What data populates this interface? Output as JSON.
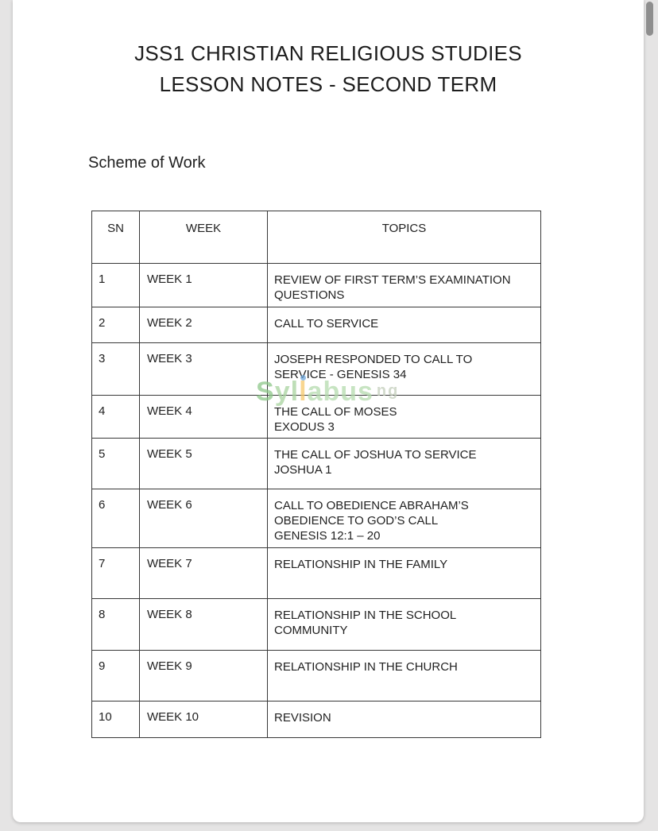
{
  "document": {
    "title_line1": "JSS1 CHRISTIAN RELIGIOUS STUDIES",
    "title_line2": "LESSON NOTES - SECOND TERM",
    "section_heading": "Scheme of Work"
  },
  "table": {
    "headers": [
      "SN",
      "WEEK",
      "TOPICS"
    ],
    "rows": [
      {
        "sn": "1",
        "week": "WEEK 1",
        "topic": [
          "REVIEW OF FIRST TERM’S EXAMINATION",
          "QUESTIONS"
        ]
      },
      {
        "sn": "2",
        "week": "WEEK 2",
        "topic": [
          "CALL TO SERVICE"
        ]
      },
      {
        "sn": "3",
        "week": "WEEK 3",
        "topic": [
          "JOSEPH RESPONDED TO CALL TO",
          "SERVICE - GENESIS 34"
        ]
      },
      {
        "sn": "4",
        "week": "WEEK 4",
        "topic": [
          "THE CALL OF MOSES",
          "EXODUS 3"
        ]
      },
      {
        "sn": "5",
        "week": "WEEK 5",
        "topic": [
          "THE CALL OF JOSHUA TO SERVICE",
          "JOSHUA 1"
        ]
      },
      {
        "sn": "6",
        "week": "WEEK 6",
        "topic": [
          "CALL TO OBEDIENCE ABRAHAM’S",
          "OBEDIENCE TO GOD’S CALL",
          "GENESIS 12:1 – 20"
        ]
      },
      {
        "sn": "7",
        "week": "WEEK 7",
        "topic": [
          "RELATIONSHIP IN THE FAMILY"
        ]
      },
      {
        "sn": "8",
        "week": "WEEK 8",
        "topic": [
          "RELATIONSHIP IN THE SCHOOL",
          "COMMUNITY"
        ]
      },
      {
        "sn": "9",
        "week": "WEEK 9",
        "topic": [
          "RELATIONSHIP IN THE CHURCH"
        ]
      },
      {
        "sn": "10",
        "week": "WEEK 10",
        "topic": [
          "REVISION"
        ]
      }
    ]
  },
  "watermark": {
    "text": "Syllabus",
    "suffix": "ng",
    "letters": [
      {
        "ch": "S",
        "color": "#8ec88a"
      },
      {
        "ch": "y",
        "color": "#a9d4a0"
      },
      {
        "ch": "l",
        "color": "#a9d4a0"
      },
      {
        "ch": "l",
        "color": "#f6c96b",
        "dot": "#6fa8dc"
      },
      {
        "ch": "a",
        "color": "#b5dbae"
      },
      {
        "ch": "b",
        "color": "#b5dbae"
      },
      {
        "ch": "u",
        "color": "#b5dbae"
      },
      {
        "ch": "s",
        "color": "#b5dbae"
      }
    ]
  },
  "colors": {
    "page_background": "#ffffff",
    "gutter_background": "#e5e4e4",
    "text": "#222222",
    "table_border": "#383838",
    "scrollbar_thumb": "#8e8e8e"
  }
}
